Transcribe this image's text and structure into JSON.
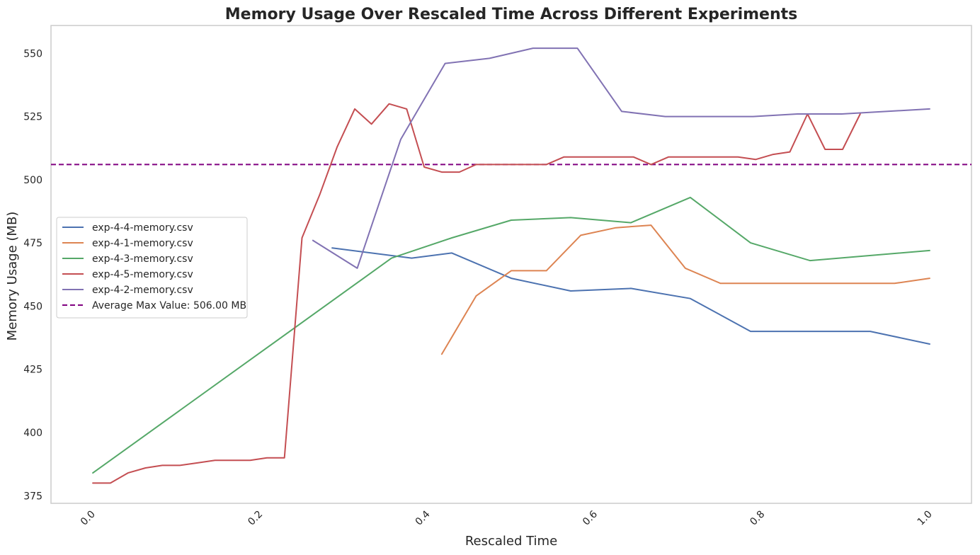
{
  "chart_data": {
    "type": "line",
    "title": "Memory Usage Over Rescaled Time Across Different Experiments",
    "xlabel": "Rescaled Time",
    "ylabel": "Memory Usage (MB)",
    "xlim": [
      -0.05,
      1.05
    ],
    "ylim": [
      372,
      561
    ],
    "x_ticks": [
      0.0,
      0.2,
      0.4,
      0.6,
      0.8,
      1.0
    ],
    "x_tick_labels": [
      "0.0",
      "0.2",
      "0.4",
      "0.6",
      "0.8",
      "1.0"
    ],
    "y_ticks": [
      375,
      400,
      425,
      450,
      475,
      500,
      525,
      550
    ],
    "y_tick_labels": [
      "375",
      "400",
      "425",
      "450",
      "475",
      "500",
      "525",
      "550"
    ],
    "grid": false,
    "legend_position": "center-left",
    "series": [
      {
        "name": "exp-4-4-memory.csv",
        "color": "#4c72b0",
        "points": [
          [
            0.286,
            473
          ],
          [
            0.381,
            469
          ],
          [
            0.429,
            471
          ],
          [
            0.5,
            461
          ],
          [
            0.571,
            456
          ],
          [
            0.643,
            457
          ],
          [
            0.714,
            453
          ],
          [
            0.786,
            440
          ],
          [
            0.929,
            440
          ],
          [
            1.0,
            435
          ]
        ]
      },
      {
        "name": "exp-4-1-memory.csv",
        "color": "#dd8452",
        "points": [
          [
            0.417,
            431
          ],
          [
            0.458,
            454
          ],
          [
            0.5,
            464
          ],
          [
            0.542,
            464
          ],
          [
            0.583,
            478
          ],
          [
            0.625,
            481
          ],
          [
            0.667,
            482
          ],
          [
            0.708,
            465
          ],
          [
            0.75,
            459
          ],
          [
            0.958,
            459
          ],
          [
            1.0,
            461
          ]
        ]
      },
      {
        "name": "exp-4-3-memory.csv",
        "color": "#55a868",
        "points": [
          [
            0.0,
            384
          ],
          [
            0.357,
            469
          ],
          [
            0.429,
            477
          ],
          [
            0.5,
            484
          ],
          [
            0.571,
            485
          ],
          [
            0.643,
            483
          ],
          [
            0.714,
            493
          ],
          [
            0.786,
            475
          ],
          [
            0.857,
            468
          ],
          [
            1.0,
            472
          ]
        ]
      },
      {
        "name": "exp-4-5-memory.csv",
        "color": "#c44e52",
        "points": [
          [
            0.0,
            380
          ],
          [
            0.021,
            380
          ],
          [
            0.042,
            384
          ],
          [
            0.063,
            386
          ],
          [
            0.083,
            387
          ],
          [
            0.104,
            387
          ],
          [
            0.125,
            388
          ],
          [
            0.146,
            389
          ],
          [
            0.167,
            389
          ],
          [
            0.188,
            389
          ],
          [
            0.208,
            390
          ],
          [
            0.229,
            390
          ],
          [
            0.25,
            477
          ],
          [
            0.271,
            494
          ],
          [
            0.292,
            513
          ],
          [
            0.313,
            528
          ],
          [
            0.333,
            522
          ],
          [
            0.354,
            530
          ],
          [
            0.375,
            528
          ],
          [
            0.396,
            505
          ],
          [
            0.417,
            503
          ],
          [
            0.438,
            503
          ],
          [
            0.458,
            506
          ],
          [
            0.479,
            506
          ],
          [
            0.5,
            506
          ],
          [
            0.521,
            506
          ],
          [
            0.542,
            506
          ],
          [
            0.563,
            509
          ],
          [
            0.583,
            509
          ],
          [
            0.604,
            509
          ],
          [
            0.625,
            509
          ],
          [
            0.646,
            509
          ],
          [
            0.667,
            506
          ],
          [
            0.688,
            509
          ],
          [
            0.708,
            509
          ],
          [
            0.729,
            509
          ],
          [
            0.75,
            509
          ],
          [
            0.771,
            509
          ],
          [
            0.792,
            508
          ],
          [
            0.813,
            510
          ],
          [
            0.833,
            511
          ],
          [
            0.854,
            526
          ],
          [
            0.875,
            512
          ],
          [
            0.896,
            512
          ],
          [
            0.917,
            526
          ]
        ]
      },
      {
        "name": "exp-4-2-memory.csv",
        "color": "#8172b3",
        "points": [
          [
            0.263,
            476
          ],
          [
            0.316,
            465
          ],
          [
            0.368,
            516
          ],
          [
            0.421,
            546
          ],
          [
            0.474,
            548
          ],
          [
            0.526,
            552
          ],
          [
            0.579,
            552
          ],
          [
            0.632,
            527
          ],
          [
            0.684,
            525
          ],
          [
            0.789,
            525
          ],
          [
            0.842,
            526
          ],
          [
            0.895,
            526
          ],
          [
            1.0,
            528
          ]
        ]
      }
    ],
    "reference_line": {
      "label": "Average Max Value: 506.00 MB",
      "value": 506,
      "color": "#800080",
      "style": "dashed"
    }
  }
}
